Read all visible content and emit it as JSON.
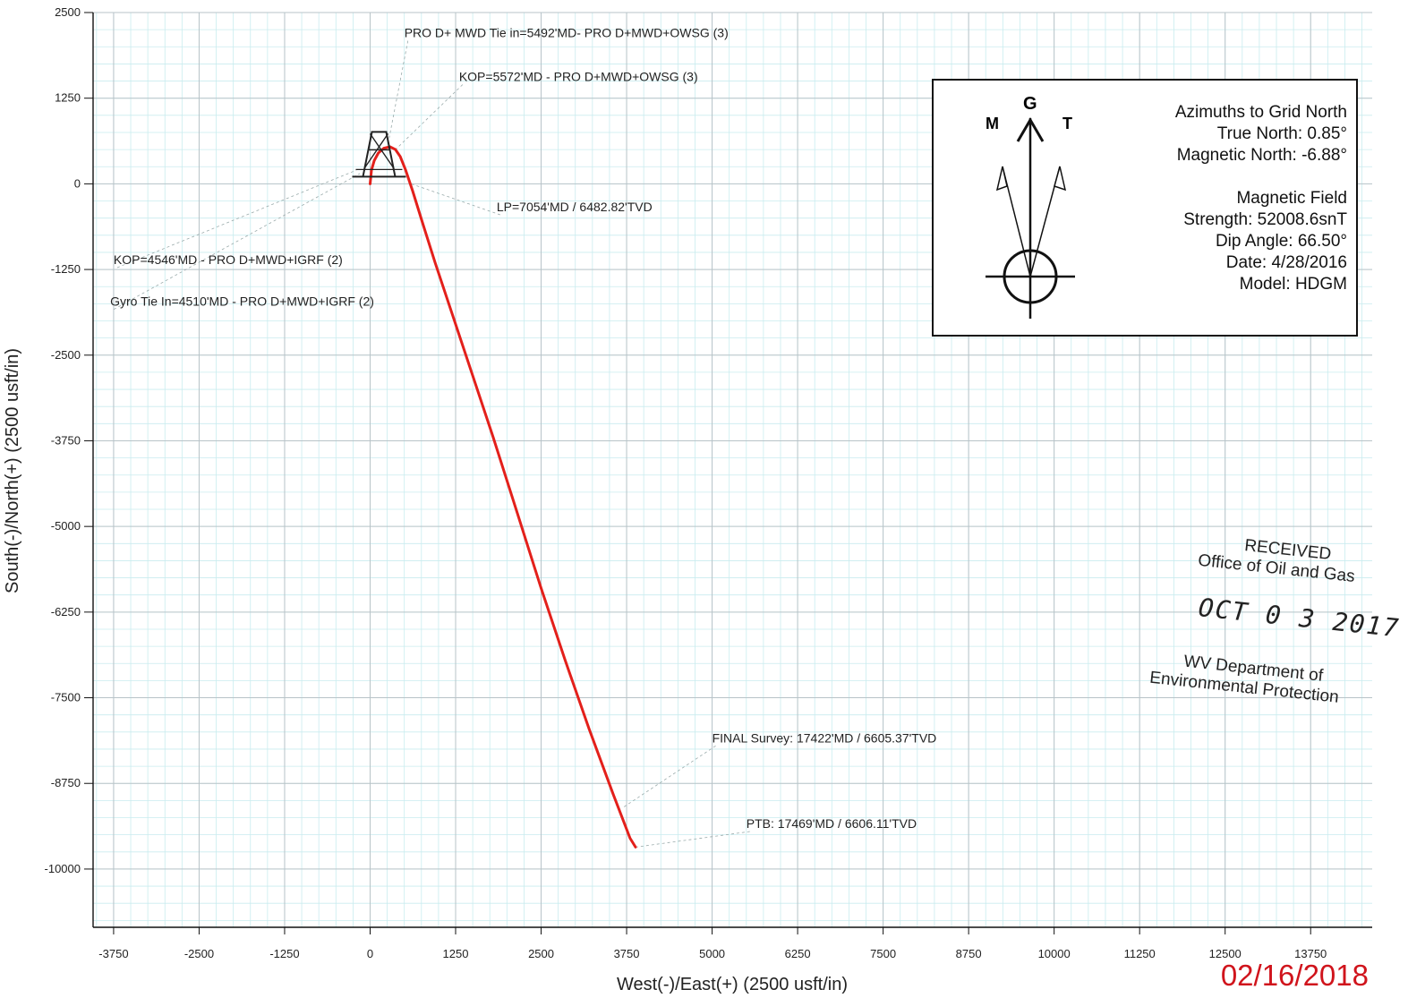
{
  "chart_data": {
    "type": "line",
    "title": "",
    "xlabel": "West(-)/East(+) (2500 usft/in)",
    "ylabel": "South(-)/North(+) (2500 usft/in)",
    "xlim": [
      -4050,
      14650
    ],
    "ylim": [
      -10850,
      2500
    ],
    "x_ticks": [
      -3750,
      -2500,
      -1250,
      0,
      1250,
      2500,
      3750,
      5000,
      6250,
      7500,
      8750,
      10000,
      11250,
      12500,
      13750
    ],
    "y_ticks": [
      2500,
      1250,
      0,
      -1250,
      -2500,
      -3750,
      -5000,
      -6250,
      -7500,
      -8750,
      -10000
    ],
    "grid": true,
    "series": [
      {
        "color": "#e3201b",
        "x": [
          0,
          20,
          60,
          120,
          200,
          290,
          370,
          440,
          520,
          620,
          760,
          950,
          1200,
          1500,
          1800,
          2150,
          2500,
          2850,
          3200,
          3550,
          3800,
          3880
        ],
        "y": [
          0,
          200,
          340,
          450,
          520,
          540,
          500,
          400,
          200,
          -100,
          -550,
          -1150,
          -1900,
          -2800,
          -3700,
          -4800,
          -5900,
          -6950,
          -7950,
          -8900,
          -9550,
          -9680
        ]
      }
    ],
    "annotations": [
      {
        "text": "PRO D+ MWD Tie in=5492'MD-  PRO D+MWD+OWSG (3)",
        "x": 500,
        "y": 2140
      },
      {
        "text": "KOP=5572'MD -  PRO D+MWD+OWSG (3)",
        "x": 1300,
        "y": 1500
      },
      {
        "text": "LP=7054'MD / 6482.82'TVD",
        "x": 1850,
        "y": -400
      },
      {
        "text": "KOP=4546'MD -  PRO D+MWD+IGRF (2)",
        "x": -3750,
        "y": -1170
      },
      {
        "text": "Gyro Tie In=4510'MD - PRO D+MWD+IGRF (2)",
        "x": -3800,
        "y": -1780
      },
      {
        "text": "FINAL Survey: 17422'MD / 6605.37'TVD",
        "x": 5000,
        "y": -8150
      },
      {
        "text": "PTB: 17469'MD / 6606.11'TVD",
        "x": 5500,
        "y": -9400
      }
    ]
  },
  "info_box": {
    "north_symbols": {
      "magnetic": "M",
      "grid": "G",
      "true": "T"
    },
    "lines": [
      "Azimuths to Grid North",
      "True North: 0.85°",
      "Magnetic North: -6.88°",
      "",
      "Magnetic Field",
      "Strength: 52008.6snT",
      "Dip Angle: 66.50°",
      "Date: 4/28/2016",
      "Model: HDGM"
    ]
  },
  "stamp": {
    "line1": "RECEIVED",
    "line2": "Office of Oil and Gas",
    "date": "OCT 0 3 2017",
    "line3": "WV Department of",
    "line4": "Environmental Protection"
  },
  "date_stamp": "02/16/2018",
  "colors": {
    "trajectory": "#e3201b",
    "grid_minor": "#c9ecef",
    "grid_major": "#b8c3c8",
    "date_stamp": "#d0141c"
  }
}
